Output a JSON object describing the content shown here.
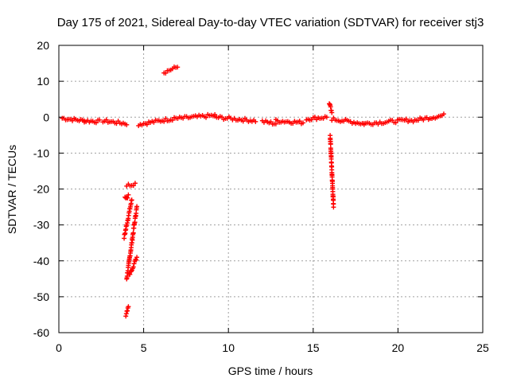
{
  "chart_data": {
    "type": "scatter",
    "title": "Day 175 of 2021, Sidereal Day-to-day VTEC variation (SDTVAR) for receiver stj3",
    "xlabel": "GPS time / hours",
    "ylabel": "SDTVAR / TECUs",
    "xlim": [
      0,
      25
    ],
    "ylim": [
      -60,
      20
    ],
    "xticks": [
      0,
      5,
      10,
      15,
      20,
      25
    ],
    "yticks": [
      -60,
      -50,
      -40,
      -30,
      -20,
      -10,
      0,
      10,
      20
    ],
    "grid": true,
    "marker": "+",
    "color": "#ff0000",
    "series": [
      {
        "name": "SDTVAR",
        "segments": [
          {
            "x": [
              0.2,
              1.5
            ],
            "y": [
              -0.3,
              -1.0
            ]
          },
          {
            "x": [
              1.5,
              2.4
            ],
            "y": [
              -1.0,
              -1.2
            ]
          },
          {
            "x": [
              2.6,
              4.0
            ],
            "y": [
              -1.0,
              -1.8
            ]
          },
          {
            "x": [
              3.9,
              4.1
            ],
            "y": [
              -22.5,
              -22.0
            ]
          },
          {
            "x": [
              3.85,
              4.3
            ],
            "y": [
              -33.5,
              -23.0
            ]
          },
          {
            "x": [
              4.0,
              4.6
            ],
            "y": [
              -45.0,
              -25.0
            ]
          },
          {
            "x": [
              4.15,
              4.6
            ],
            "y": [
              -44.0,
              -39.0
            ]
          },
          {
            "x": [
              3.95,
              4.1
            ],
            "y": [
              -55.0,
              -52.5
            ]
          },
          {
            "x": [
              4.0,
              4.5
            ],
            "y": [
              -19.0,
              -18.5
            ]
          },
          {
            "x": [
              4.7,
              6.6
            ],
            "y": [
              -2.0,
              -0.5
            ]
          },
          {
            "x": [
              6.2,
              7.0
            ],
            "y": [
              12.5,
              14.0
            ]
          },
          {
            "x": [
              6.7,
              9.2
            ],
            "y": [
              -0.5,
              0.5
            ]
          },
          {
            "x": [
              9.2,
              11.6
            ],
            "y": [
              0.0,
              -1.0
            ]
          },
          {
            "x": [
              12.0,
              12.8
            ],
            "y": [
              -1.2,
              -1.8
            ]
          },
          {
            "x": [
              12.8,
              14.4
            ],
            "y": [
              -1.0,
              -1.5
            ]
          },
          {
            "x": [
              14.6,
              15.8
            ],
            "y": [
              -0.5,
              0.0
            ]
          },
          {
            "x": [
              15.95,
              16.1
            ],
            "y": [
              4.0,
              1.0
            ]
          },
          {
            "x": [
              16.0,
              16.2
            ],
            "y": [
              -5.0,
              -25.0
            ]
          },
          {
            "x": [
              16.1,
              18.0
            ],
            "y": [
              -0.5,
              -1.8
            ]
          },
          {
            "x": [
              18.0,
              20.7
            ],
            "y": [
              -1.8,
              -0.8
            ]
          },
          {
            "x": [
              20.8,
              22.7
            ],
            "y": [
              -1.0,
              0.5
            ]
          }
        ]
      }
    ]
  }
}
